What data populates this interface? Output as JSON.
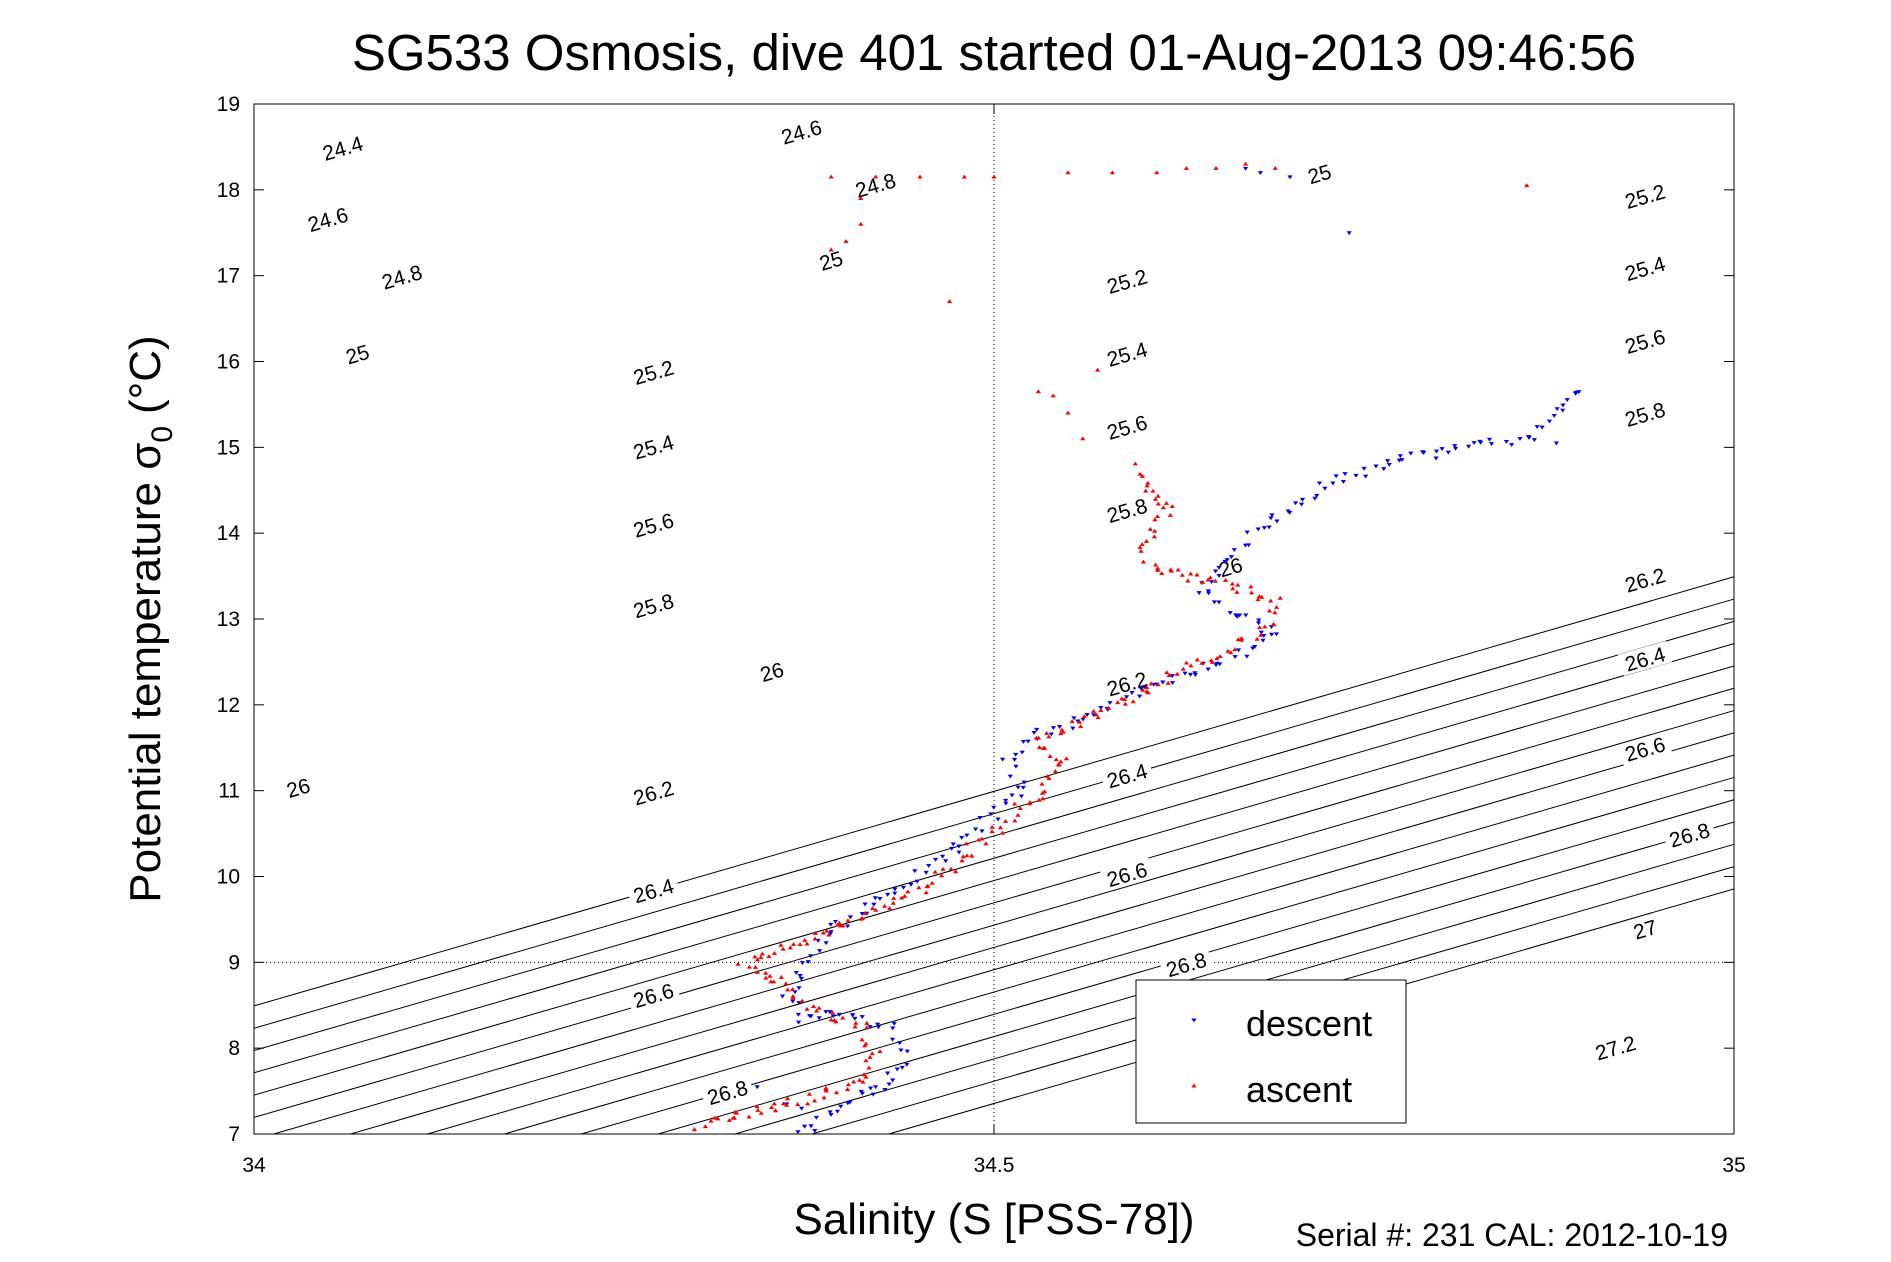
{
  "title": "SG533 Osmosis, dive 401 started 01-Aug-2013 09:46:56",
  "footer": "Serial #: 231  CAL: 2012-10-19",
  "chart_data": {
    "type": "scatter",
    "title": "SG533 Osmosis, dive 401 started 01-Aug-2013 09:46:56",
    "xlabel": "Salinity (S [PSS-78])",
    "ylabel_main": "Potential temperature σ",
    "ylabel_sub": "0",
    "ylabel_unit": "(°C)",
    "xlim": [
      34,
      35
    ],
    "ylim": [
      7,
      19
    ],
    "xticks": [
      34,
      34.5,
      35
    ],
    "xtick_labels": [
      "34",
      "34.5",
      "35"
    ],
    "yticks": [
      7,
      8,
      9,
      10,
      11,
      12,
      13,
      14,
      15,
      16,
      17,
      18,
      19
    ],
    "ytick_labels": [
      "7",
      "8",
      "9",
      "10",
      "11",
      "12",
      "13",
      "14",
      "15",
      "16",
      "17",
      "18",
      "19"
    ],
    "grid": {
      "x": [
        34.5
      ],
      "y": [
        9
      ]
    },
    "legend_position": "lower-right",
    "contours": {
      "name": "sigma0 isopycnals",
      "alpha": 0.2,
      "beta": 0.77,
      "levels": [
        24.4,
        24.6,
        24.8,
        25,
        25.2,
        25.4,
        25.6,
        25.8,
        26,
        26.2,
        26.4,
        26.6,
        26.8,
        27,
        27.2
      ],
      "labels": [
        {
          "text": "24.4",
          "x": 34.06,
          "y": 18.48
        },
        {
          "text": "24.6",
          "x": 34.37,
          "y": 18.67
        },
        {
          "text": "24.6",
          "x": 34.05,
          "y": 17.65
        },
        {
          "text": "24.8",
          "x": 34.42,
          "y": 18.05
        },
        {
          "text": "25",
          "x": 34.72,
          "y": 18.18
        },
        {
          "text": "25.2",
          "x": 34.94,
          "y": 17.92
        },
        {
          "text": "24.8",
          "x": 34.1,
          "y": 16.98
        },
        {
          "text": "25",
          "x": 34.39,
          "y": 17.17
        },
        {
          "text": "25.2",
          "x": 34.59,
          "y": 16.93
        },
        {
          "text": "25.4",
          "x": 34.94,
          "y": 17.08
        },
        {
          "text": "25",
          "x": 34.07,
          "y": 16.08
        },
        {
          "text": "25.4",
          "x": 34.59,
          "y": 16.08
        },
        {
          "text": "25.6",
          "x": 34.94,
          "y": 16.23
        },
        {
          "text": "25.2",
          "x": 34.27,
          "y": 15.87
        },
        {
          "text": "25.6",
          "x": 34.59,
          "y": 15.23
        },
        {
          "text": "25.8",
          "x": 34.94,
          "y": 15.38
        },
        {
          "text": "25.4",
          "x": 34.27,
          "y": 15.0
        },
        {
          "text": "25.8",
          "x": 34.59,
          "y": 14.26
        },
        {
          "text": "25.6",
          "x": 34.27,
          "y": 14.09
        },
        {
          "text": "26",
          "x": 34.66,
          "y": 13.6
        },
        {
          "text": "26.2",
          "x": 34.94,
          "y": 13.45
        },
        {
          "text": "25.8",
          "x": 34.27,
          "y": 13.15
        },
        {
          "text": "26",
          "x": 34.35,
          "y": 12.38
        },
        {
          "text": "26.2",
          "x": 34.59,
          "y": 12.24
        },
        {
          "text": "26.4",
          "x": 34.94,
          "y": 12.53
        },
        {
          "text": "26",
          "x": 34.03,
          "y": 11.03
        },
        {
          "text": "26.4",
          "x": 34.59,
          "y": 11.17
        },
        {
          "text": "26.6",
          "x": 34.94,
          "y": 11.48
        },
        {
          "text": "26.2",
          "x": 34.27,
          "y": 10.97
        },
        {
          "text": "26.6",
          "x": 34.59,
          "y": 10.02
        },
        {
          "text": "26.8",
          "x": 34.97,
          "y": 10.48
        },
        {
          "text": "26.4",
          "x": 34.27,
          "y": 9.83
        },
        {
          "text": "26.8",
          "x": 34.63,
          "y": 8.97
        },
        {
          "text": "27",
          "x": 34.94,
          "y": 9.38
        },
        {
          "text": "26.6",
          "x": 34.27,
          "y": 8.61
        },
        {
          "text": "27.2",
          "x": 34.92,
          "y": 8.0
        },
        {
          "text": "26.8",
          "x": 34.32,
          "y": 7.48
        }
      ]
    },
    "series": [
      {
        "name": "descent",
        "color": "#0000ff",
        "marker": "triangle-down",
        "path": [
          [
            34.37,
            7.0
          ],
          [
            34.4,
            7.35
          ],
          [
            34.43,
            7.6
          ],
          [
            34.44,
            7.9
          ],
          [
            34.43,
            8.25
          ],
          [
            34.4,
            8.4
          ],
          [
            34.37,
            8.35
          ],
          [
            34.36,
            8.6
          ],
          [
            34.37,
            8.9
          ],
          [
            34.38,
            9.2
          ],
          [
            34.41,
            9.6
          ],
          [
            34.44,
            9.9
          ],
          [
            34.47,
            10.3
          ],
          [
            34.5,
            10.7
          ],
          [
            34.52,
            11.0
          ],
          [
            34.51,
            11.3
          ],
          [
            34.52,
            11.6
          ],
          [
            34.56,
            11.85
          ],
          [
            34.61,
            12.25
          ],
          [
            34.66,
            12.55
          ],
          [
            34.69,
            12.85
          ],
          [
            34.66,
            13.1
          ],
          [
            34.64,
            13.4
          ],
          [
            34.66,
            13.7
          ],
          [
            34.68,
            14.1
          ],
          [
            34.7,
            14.3
          ],
          [
            34.73,
            14.6
          ],
          [
            34.76,
            14.8
          ],
          [
            34.82,
            15.0
          ],
          [
            34.86,
            15.1
          ],
          [
            34.9,
            15.75
          ]
        ],
        "extra": [
          [
            34.68,
            18.2
          ],
          [
            34.67,
            18.25
          ],
          [
            34.7,
            18.15
          ],
          [
            34.74,
            17.5
          ],
          [
            34.88,
            15.05
          ],
          [
            34.36,
            7.35
          ],
          [
            34.34,
            7.55
          ],
          [
            34.37,
            7.3
          ],
          [
            34.42,
            7.55
          ]
        ],
        "count": 240,
        "seed": 11
      },
      {
        "name": "ascent",
        "color": "#ff0000",
        "marker": "triangle-up",
        "path": [
          [
            34.3,
            7.1
          ],
          [
            34.36,
            7.35
          ],
          [
            34.41,
            7.6
          ],
          [
            34.42,
            7.95
          ],
          [
            34.41,
            8.25
          ],
          [
            34.37,
            8.5
          ],
          [
            34.36,
            8.75
          ],
          [
            34.33,
            9.0
          ],
          [
            34.38,
            9.3
          ],
          [
            34.42,
            9.6
          ],
          [
            34.46,
            9.95
          ],
          [
            34.49,
            10.4
          ],
          [
            34.53,
            10.95
          ],
          [
            34.55,
            11.35
          ],
          [
            34.53,
            11.55
          ],
          [
            34.57,
            11.9
          ],
          [
            34.63,
            12.4
          ],
          [
            34.67,
            12.75
          ],
          [
            34.69,
            13.0
          ],
          [
            34.69,
            13.2
          ],
          [
            34.65,
            13.45
          ],
          [
            34.61,
            13.55
          ],
          [
            34.6,
            13.85
          ],
          [
            34.61,
            14.1
          ],
          [
            34.62,
            14.3
          ],
          [
            34.59,
            14.8
          ]
        ],
        "extra": [
          [
            34.56,
            15.1
          ],
          [
            34.55,
            15.4
          ],
          [
            34.54,
            15.6
          ],
          [
            34.57,
            15.9
          ],
          [
            34.53,
            15.65
          ],
          [
            34.39,
            18.15
          ],
          [
            34.42,
            18.15
          ],
          [
            34.45,
            18.15
          ],
          [
            34.48,
            18.15
          ],
          [
            34.5,
            18.15
          ],
          [
            34.55,
            18.2
          ],
          [
            34.58,
            18.2
          ],
          [
            34.61,
            18.2
          ],
          [
            34.63,
            18.25
          ],
          [
            34.65,
            18.25
          ],
          [
            34.67,
            18.3
          ],
          [
            34.69,
            18.25
          ],
          [
            34.41,
            17.9
          ],
          [
            34.41,
            17.6
          ],
          [
            34.4,
            17.4
          ],
          [
            34.39,
            17.3
          ],
          [
            34.47,
            16.7
          ],
          [
            34.86,
            18.05
          ]
        ],
        "count": 260,
        "seed": 29
      }
    ]
  }
}
